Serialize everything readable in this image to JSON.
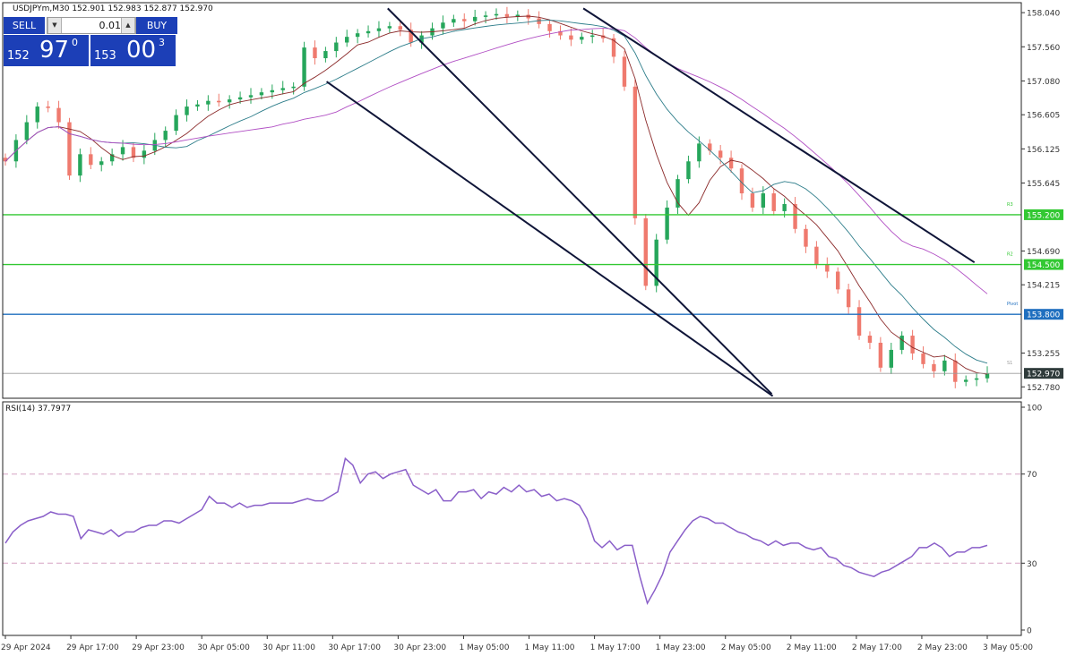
{
  "header": {
    "text": "USDJPYm,M30  152.901 152.983 152.877 152.970"
  },
  "tradebox": {
    "sell_label": "SELL",
    "buy_label": "BUY",
    "lot": "0.01",
    "sell_small": "152",
    "sell_big": "97",
    "sell_sup": "0",
    "buy_small": "153",
    "buy_big": "00",
    "buy_sup": "3"
  },
  "colors": {
    "bull": "#26a65b",
    "bear": "#ef7a6e",
    "channel": "#0f1538",
    "ma_fast": "#8b2a2a",
    "ma_mid": "#2d7d8a",
    "ma_slow": "#b14fc4",
    "level_green": "#32c832",
    "level_blue": "#1f6fbf",
    "rsi": "#8a5fc9"
  },
  "chart_data": [
    {
      "type": "candlestick",
      "title": "USDJPYm,M30",
      "ylim": [
        152.62,
        158.18
      ],
      "price_ticks": [
        "158.040",
        "157.560",
        "157.080",
        "156.605",
        "156.125",
        "155.645",
        "155.200",
        "154.690",
        "154.500",
        "154.215",
        "153.800",
        "153.255",
        "152.970",
        "152.780"
      ],
      "x_labels": [
        "29 Apr 2024",
        "29 Apr 17:00",
        "29 Apr 23:00",
        "30 Apr 05:00",
        "30 Apr 11:00",
        "30 Apr 17:00",
        "30 Apr 23:00",
        "1 May 05:00",
        "1 May 11:00",
        "1 May 17:00",
        "1 May 23:00",
        "2 May 05:00",
        "2 May 11:00",
        "2 May 17:00",
        "2 May 23:00",
        "3 May 05:00"
      ],
      "close_series": [
        155.95,
        156.25,
        156.5,
        156.72,
        156.7,
        156.5,
        155.75,
        156.05,
        155.9,
        155.95,
        156.05,
        156.15,
        156.0,
        156.1,
        156.25,
        156.38,
        156.6,
        156.72,
        156.75,
        156.8,
        156.78,
        156.82,
        156.85,
        156.88,
        156.92,
        156.95,
        156.98,
        157.0,
        157.55,
        157.4,
        157.5,
        157.62,
        157.7,
        157.75,
        157.78,
        157.82,
        157.85,
        157.8,
        157.62,
        157.72,
        157.82,
        157.9,
        157.95,
        157.92,
        157.98,
        158.0,
        158.02,
        157.98,
        158.01,
        157.96,
        157.88,
        157.78,
        157.72,
        157.66,
        157.7,
        157.72,
        157.68,
        157.42,
        157.0,
        155.15,
        154.2,
        154.85,
        155.3,
        155.7,
        155.95,
        156.2,
        156.1,
        156.0,
        155.85,
        155.5,
        155.3,
        155.5,
        155.25,
        155.35,
        155.0,
        154.75,
        154.5,
        154.4,
        154.15,
        153.9,
        153.5,
        153.4,
        153.05,
        153.3,
        153.5,
        153.25,
        153.1,
        153.0,
        153.15,
        152.85,
        152.88,
        152.9,
        152.97
      ],
      "levels": [
        {
          "label": "155.200",
          "value": 155.2,
          "line": "R3"
        },
        {
          "label": "154.500",
          "value": 154.5,
          "line": "R2"
        },
        {
          "label": "153.800",
          "value": 153.8,
          "line": "Pivot"
        },
        {
          "label": "152.970",
          "value": 152.97,
          "line": "S1"
        }
      ],
      "channel_lines": [
        {
          "x1_pct": 37.8,
          "y1": 158.1,
          "x2_pct": 75.5,
          "y2": 152.68
        },
        {
          "x1_pct": 31.8,
          "y1": 157.07,
          "x2_pct": 75.6,
          "y2": 152.65
        },
        {
          "x1_pct": 57.0,
          "y1": 158.1,
          "x2_pct": 95.4,
          "y2": 154.53
        }
      ]
    },
    {
      "type": "line",
      "title": "RSI(14) 37.7977",
      "ylim": [
        0,
        100
      ],
      "y_ticks": [
        "100",
        "70",
        "30",
        "0"
      ],
      "reference_lines": [
        70,
        30
      ],
      "values": [
        39,
        44,
        47,
        49,
        50,
        51,
        53,
        52,
        52,
        51,
        41,
        45,
        44,
        43,
        45,
        42,
        44,
        44,
        46,
        47,
        47,
        49,
        49,
        48,
        50,
        52,
        54,
        60,
        57,
        57,
        55,
        57,
        55,
        56,
        56,
        57,
        57,
        57,
        57,
        58,
        59,
        58,
        58,
        60,
        62,
        77,
        74,
        66,
        70,
        71,
        68,
        70,
        71,
        72,
        65,
        63,
        61,
        63,
        58,
        58,
        62,
        62,
        63,
        59,
        62,
        61,
        64,
        62,
        65,
        62,
        63,
        60,
        61,
        58,
        59,
        58,
        56,
        50,
        40,
        37,
        40,
        36,
        38,
        38,
        24,
        12,
        18,
        25,
        35,
        40,
        45,
        49,
        51,
        50,
        48,
        48,
        46,
        44,
        43,
        41,
        40,
        38,
        40,
        38,
        39,
        39,
        37,
        36,
        37,
        33,
        32,
        29,
        28,
        26,
        25,
        24,
        26,
        27,
        29,
        31,
        33,
        37,
        37,
        39,
        37,
        33,
        35,
        35,
        37,
        37,
        38
      ]
    }
  ]
}
